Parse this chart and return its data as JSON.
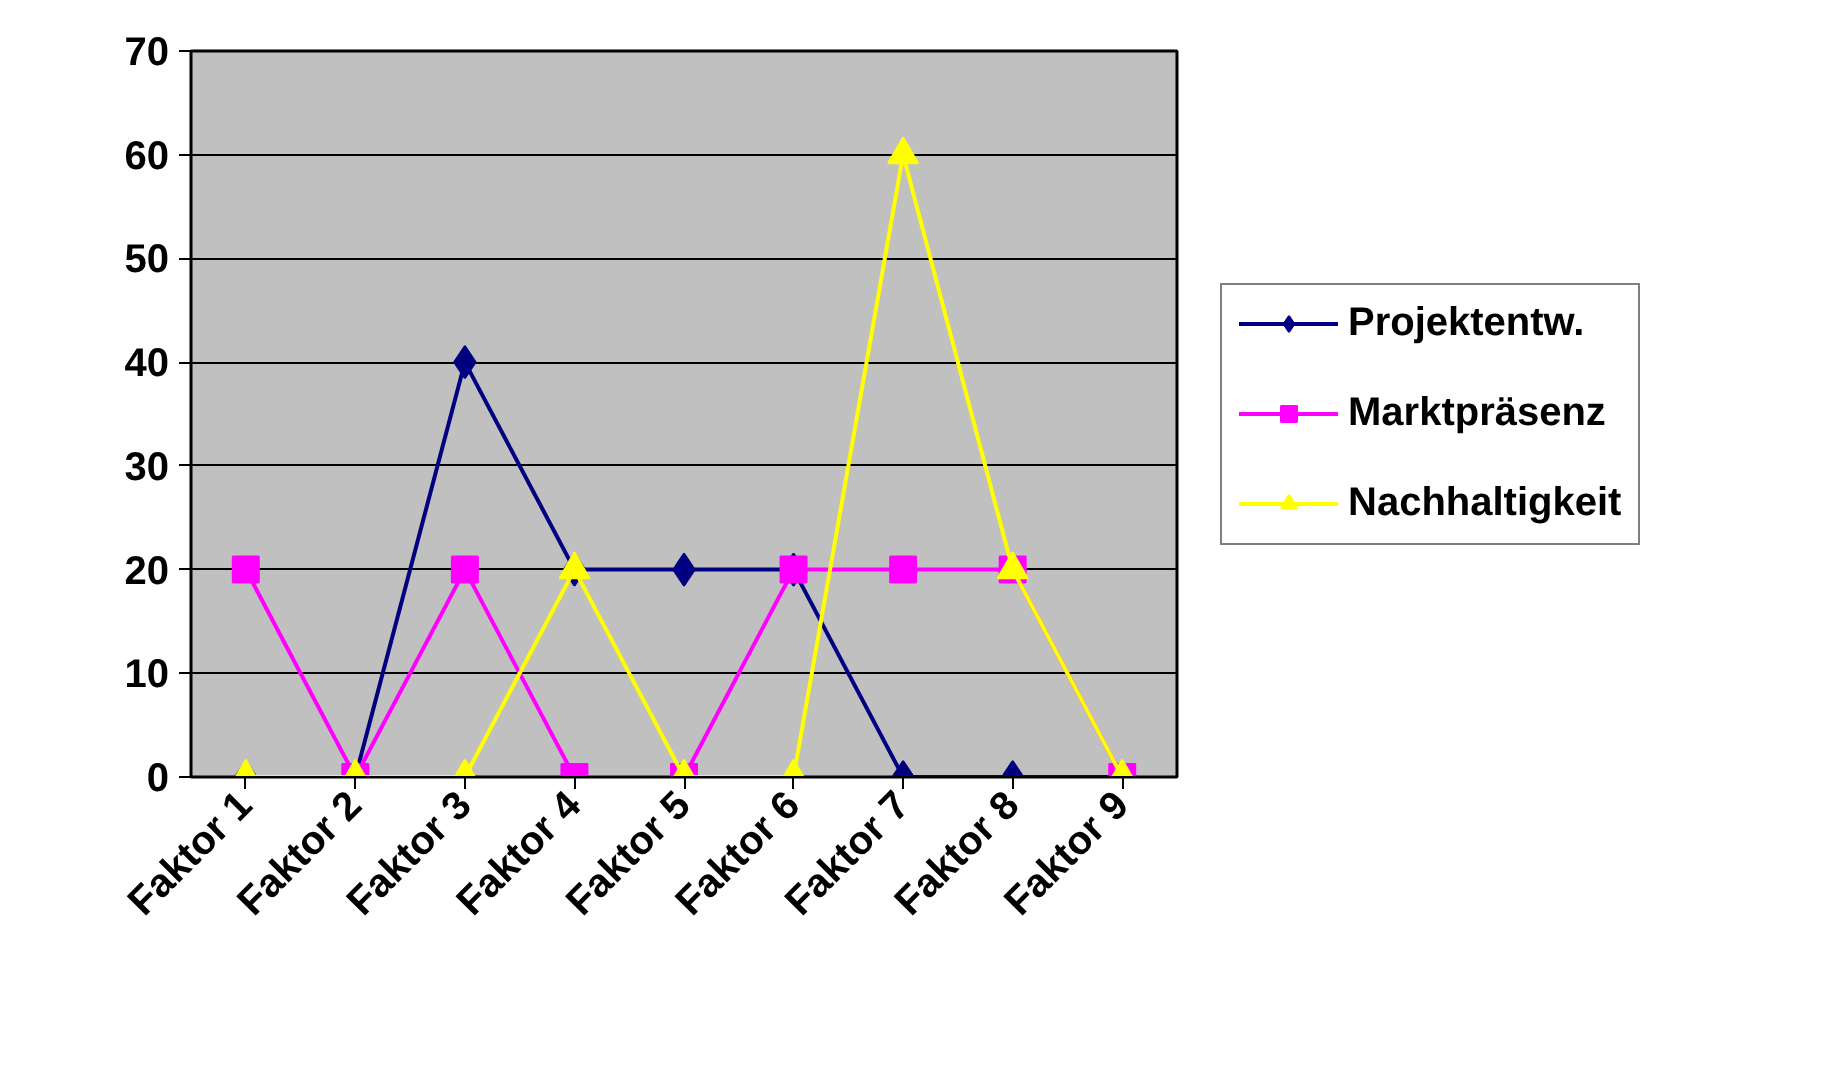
{
  "chart_data": {
    "type": "line",
    "categories": [
      "Faktor 1",
      "Faktor 2",
      "Faktor 3",
      "Faktor 4",
      "Faktor 5",
      "Faktor 6",
      "Faktor 7",
      "Faktor 8",
      "Faktor 9"
    ],
    "series": [
      {
        "name": "Projektentw.",
        "color": "#000080",
        "marker": "diamond",
        "values": [
          0,
          0,
          40,
          20,
          20,
          20,
          0,
          0,
          0
        ]
      },
      {
        "name": "Marktpräsenz",
        "color": "#ff00ff",
        "marker": "square",
        "values": [
          20,
          0,
          20,
          0,
          0,
          20,
          20,
          20,
          0
        ]
      },
      {
        "name": "Nachhaltigkeit",
        "color": "#ffff00",
        "marker": "triangle",
        "values": [
          0,
          0,
          0,
          20,
          0,
          0,
          60,
          20,
          0
        ]
      }
    ],
    "ylim": [
      0,
      70
    ],
    "yticks": [
      0,
      10,
      20,
      30,
      40,
      50,
      60,
      70
    ],
    "grid": "y",
    "legend": "right",
    "line_style": "solid"
  }
}
